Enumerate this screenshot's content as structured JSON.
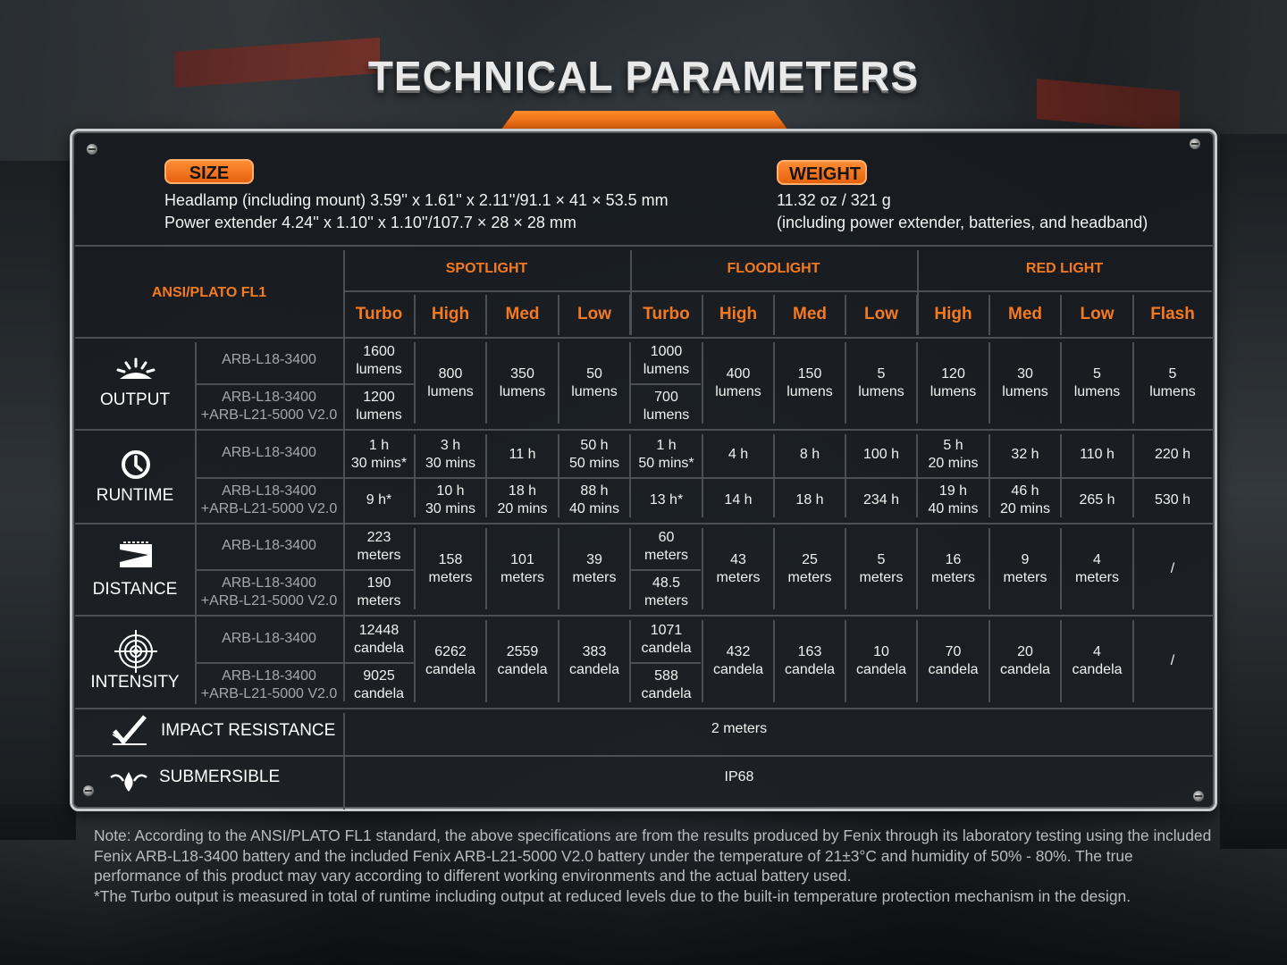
{
  "title": "TECHNICAL PARAMETERS",
  "size": {
    "label": "SIZE",
    "line1": "Headlamp (including mount)  3.59'' x 1.61'' x 2.11''/91.1 × 41 × 53.5 mm",
    "line2": "Power extender  4.24'' x 1.10'' x 1.10''/107.7 × 28 × 28 mm"
  },
  "weight": {
    "label": "WEIGHT",
    "line1": "11.32 oz / 321 g",
    "line2": "(including power extender, batteries, and headband)"
  },
  "table": {
    "standard": "ANSI/PLATO FL1",
    "groups": [
      "SPOTLIGHT",
      "FLOODLIGHT",
      "RED LIGHT"
    ],
    "modes": [
      "Turbo",
      "High",
      "Med",
      "Low",
      "Turbo",
      "High",
      "Med",
      "Low",
      "High",
      "Med",
      "Low",
      "Flash"
    ],
    "battery1": "ARB-L18-3400",
    "battery2_a": "ARB-L18-3400",
    "battery2_b": "+ARB-L21-5000 V2.0",
    "output": {
      "label": "OUTPUT",
      "spot_turbo_1": [
        "1600",
        "lumens"
      ],
      "spot_turbo_2": [
        "1200",
        "lumens"
      ],
      "flood_turbo_1": [
        "1000",
        "lumens"
      ],
      "flood_turbo_2": [
        "700",
        "lumens"
      ],
      "merged": [
        [
          "800",
          "lumens"
        ],
        [
          "350",
          "lumens"
        ],
        [
          "50",
          "lumens"
        ],
        [
          "400",
          "lumens"
        ],
        [
          "150",
          "lumens"
        ],
        [
          "5",
          "lumens"
        ],
        [
          "120",
          "lumens"
        ],
        [
          "30",
          "lumens"
        ],
        [
          "5",
          "lumens"
        ],
        [
          "5",
          "lumens"
        ]
      ]
    },
    "runtime": {
      "label": "RUNTIME",
      "row1": [
        [
          "1 h",
          "30 mins*"
        ],
        [
          "3 h",
          "30 mins"
        ],
        [
          "11 h",
          ""
        ],
        [
          "50 h",
          "50 mins"
        ],
        [
          "1 h",
          "50 mins*"
        ],
        [
          "4 h",
          ""
        ],
        [
          "8 h",
          ""
        ],
        [
          "100 h",
          ""
        ],
        [
          "5 h",
          "20 mins"
        ],
        [
          "32 h",
          ""
        ],
        [
          "110 h",
          ""
        ],
        [
          "220 h",
          ""
        ]
      ],
      "row2": [
        [
          "9 h*",
          ""
        ],
        [
          "10 h",
          "30 mins"
        ],
        [
          "18 h",
          "20 mins"
        ],
        [
          "88 h",
          "40 mins"
        ],
        [
          "13 h*",
          ""
        ],
        [
          "14 h",
          ""
        ],
        [
          "18 h",
          ""
        ],
        [
          "234 h",
          ""
        ],
        [
          "19 h",
          "40 mins"
        ],
        [
          "46 h",
          "20 mins"
        ],
        [
          "265 h",
          ""
        ],
        [
          "530 h",
          ""
        ]
      ]
    },
    "distance": {
      "label": "DISTANCE",
      "spot_turbo_1": [
        "223",
        "meters"
      ],
      "spot_turbo_2": [
        "190",
        "meters"
      ],
      "flood_turbo_1": [
        "60",
        "meters"
      ],
      "flood_turbo_2": [
        "48.5",
        "meters"
      ],
      "merged": [
        [
          "158",
          "meters"
        ],
        [
          "101",
          "meters"
        ],
        [
          "39",
          "meters"
        ],
        [
          "43",
          "meters"
        ],
        [
          "25",
          "meters"
        ],
        [
          "5",
          "meters"
        ],
        [
          "16",
          "meters"
        ],
        [
          "9",
          "meters"
        ],
        [
          "4",
          "meters"
        ],
        [
          "/",
          ""
        ]
      ]
    },
    "intensity": {
      "label": "INTENSITY",
      "spot_turbo_1": [
        "12448",
        "candela"
      ],
      "spot_turbo_2": [
        "9025",
        "candela"
      ],
      "flood_turbo_1": [
        "1071",
        "candela"
      ],
      "flood_turbo_2": [
        "588",
        "candela"
      ],
      "merged": [
        [
          "6262",
          "candela"
        ],
        [
          "2559",
          "candela"
        ],
        [
          "383",
          "candela"
        ],
        [
          "432",
          "candela"
        ],
        [
          "163",
          "candela"
        ],
        [
          "10",
          "candela"
        ],
        [
          "70",
          "candela"
        ],
        [
          "20",
          "candela"
        ],
        [
          "4",
          "candela"
        ],
        [
          "/",
          ""
        ]
      ]
    },
    "impact": {
      "label": "IMPACT RESISTANCE",
      "value": "2 meters"
    },
    "submersible": {
      "label": "SUBMERSIBLE",
      "value": "IP68"
    }
  },
  "note": {
    "line1": "Note: According to the ANSI/PLATO FL1 standard, the above specifications are from the results produced by Fenix through its laboratory testing using the included Fenix ARB-L18-3400 battery and the included Fenix ARB-L21-5000 V2.0 battery under the temperature of 21±3°C and humidity of 50% - 80%. The true performance of this product may vary according to different working environments and the actual battery used.",
    "line2": "*The Turbo output is measured in total of runtime including output at reduced levels due to the built-in temperature protection mechanism in the design."
  },
  "colors": {
    "accent": "#f47a22",
    "panel": "#1a1e22",
    "line": "#4c5054"
  }
}
